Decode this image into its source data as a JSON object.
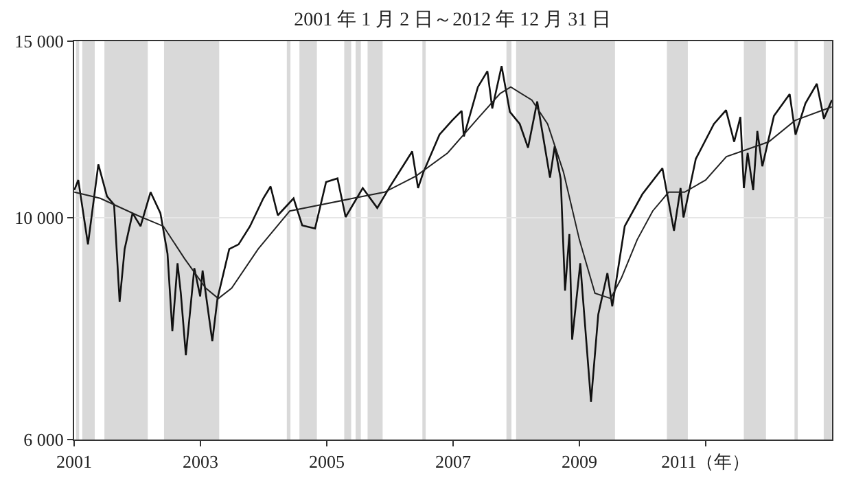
{
  "chart_data": {
    "type": "line",
    "title": "2001 年 1 月 2 日～2012 年 12 月 31 日",
    "xlim": [
      "2001-01-01",
      "2013-01-01"
    ],
    "xticks": [
      {
        "value": "2001-01-01",
        "label": "2001"
      },
      {
        "value": "2003-01-01",
        "label": "2003"
      },
      {
        "value": "2005-01-01",
        "label": "2005"
      },
      {
        "value": "2007-01-01",
        "label": "2007"
      },
      {
        "value": "2009-01-01",
        "label": "2009"
      },
      {
        "value": "2011-01-01",
        "label": "2011（年）"
      }
    ],
    "ylim": [
      6000,
      15000
    ],
    "yticks": [
      {
        "value": 6000,
        "label": "6 000"
      },
      {
        "value": 10000,
        "label": "10 000"
      },
      {
        "value": 15000,
        "label": "15 000"
      }
    ],
    "log": true,
    "grid": "y",
    "marker": "none",
    "line_style": "solid",
    "series": [
      {
        "color": "#111111",
        "x": [
          "2001-01-02",
          "2001-01-25",
          "2001-03-22",
          "2001-05-21",
          "2001-07-10",
          "2001-08-20",
          "2001-09-21",
          "2001-10-20",
          "2001-12-05",
          "2002-01-20",
          "2002-03-19",
          "2002-05-15",
          "2002-06-25",
          "2002-07-23",
          "2002-08-22",
          "2002-09-10",
          "2002-10-09",
          "2002-11-27",
          "2002-12-31",
          "2003-01-14",
          "2003-03-11",
          "2003-04-10",
          "2003-06-17",
          "2003-08-10",
          "2003-10-15",
          "2003-12-31",
          "2004-02-11",
          "2004-03-24",
          "2004-06-23",
          "2004-08-12",
          "2004-10-25",
          "2004-12-28",
          "2005-03-04",
          "2005-04-20",
          "2005-07-28",
          "2005-10-20",
          "2005-12-30",
          "2006-05-10",
          "2006-06-13",
          "2006-07-14",
          "2006-10-15",
          "2006-12-27",
          "2007-02-20",
          "2007-03-05",
          "2007-05-25",
          "2007-07-19",
          "2007-08-16",
          "2007-10-09",
          "2007-11-26",
          "2008-01-22",
          "2008-03-10",
          "2008-05-02",
          "2008-07-15",
          "2008-08-11",
          "2008-09-15",
          "2008-10-10",
          "2008-11-04",
          "2008-11-20",
          "2009-01-06",
          "2009-03-09",
          "2009-04-20",
          "2009-06-12",
          "2009-07-10",
          "2009-09-20",
          "2009-12-31",
          "2010-04-26",
          "2010-07-02",
          "2010-08-09",
          "2010-08-26",
          "2010-11-05",
          "2011-02-18",
          "2011-04-29",
          "2011-06-15",
          "2011-07-21",
          "2011-08-10",
          "2011-09-01",
          "2011-10-03",
          "2011-10-27",
          "2011-11-25",
          "2012-01-31",
          "2012-05-01",
          "2012-06-04",
          "2012-07-31",
          "2012-10-05",
          "2012-11-15",
          "2012-12-31"
        ],
        "values": [
          10650,
          10900,
          9400,
          11300,
          10500,
          10300,
          8235,
          9300,
          10100,
          9800,
          10600,
          10100,
          9200,
          7700,
          9000,
          8400,
          7286,
          8900,
          8340,
          8850,
          7524,
          8300,
          9300,
          9400,
          9800,
          10450,
          10740,
          10050,
          10450,
          9820,
          9750,
          10850,
          10940,
          10010,
          10700,
          10220,
          10720,
          11640,
          10700,
          11100,
          12100,
          12500,
          12780,
          12050,
          13500,
          14000,
          12850,
          14165,
          12750,
          12400,
          11740,
          13060,
          10960,
          11780,
          10920,
          8450,
          9625,
          7550,
          9000,
          6547,
          8000,
          8800,
          8150,
          9800,
          10550,
          11200,
          9700,
          10700,
          10000,
          11440,
          12400,
          12800,
          11900,
          12600,
          10700,
          11600,
          10650,
          12200,
          11250,
          12630,
          13280,
          12100,
          13000,
          13600,
          12550,
          13100
        ]
      },
      {
        "color": "#222222",
        "x": [
          "2001-01-02",
          "2001-06-01",
          "2002-01-01",
          "2002-06-01",
          "2002-10-01",
          "2003-02-01",
          "2003-04-15",
          "2003-07-01",
          "2003-12-01",
          "2004-06-01",
          "2004-12-01",
          "2005-06-01",
          "2005-12-01",
          "2006-06-01",
          "2006-12-01",
          "2007-06-01",
          "2007-10-01",
          "2007-12-01",
          "2008-04-01",
          "2008-07-01",
          "2008-10-01",
          "2009-01-01",
          "2009-04-01",
          "2009-07-01",
          "2009-09-01",
          "2009-12-01",
          "2010-03-01",
          "2010-06-01",
          "2010-09-01",
          "2011-01-01",
          "2011-05-01",
          "2011-09-01",
          "2012-01-01",
          "2012-06-01",
          "2012-12-31"
        ],
        "values": [
          10600,
          10450,
          10050,
          9800,
          9100,
          8500,
          8300,
          8500,
          9300,
          10150,
          10300,
          10450,
          10600,
          11000,
          11600,
          12600,
          13300,
          13500,
          13100,
          12400,
          11100,
          9500,
          8400,
          8300,
          8700,
          9500,
          10150,
          10600,
          10600,
          10900,
          11500,
          11700,
          11900,
          12500,
          12900
        ]
      }
    ],
    "bands": [
      {
        "axis": "x",
        "from": "2001-01-12",
        "to": "2001-01-30",
        "color": "#d9d9d9"
      },
      {
        "axis": "x",
        "from": "2001-02-17",
        "to": "2001-04-30",
        "color": "#d9d9d9"
      },
      {
        "axis": "x",
        "from": "2001-06-25",
        "to": "2002-03-03",
        "color": "#d9d9d9"
      },
      {
        "axis": "x",
        "from": "2002-06-05",
        "to": "2003-04-20",
        "color": "#d9d9d9"
      },
      {
        "axis": "x",
        "from": "2004-05-15",
        "to": "2004-06-05",
        "color": "#d9d9d9"
      },
      {
        "axis": "x",
        "from": "2004-07-27",
        "to": "2004-11-05",
        "color": "#d9d9d9"
      },
      {
        "axis": "x",
        "from": "2005-04-12",
        "to": "2005-05-22",
        "color": "#d9d9d9"
      },
      {
        "axis": "x",
        "from": "2005-06-17",
        "to": "2005-07-17",
        "color": "#d9d9d9"
      },
      {
        "axis": "x",
        "from": "2005-08-25",
        "to": "2005-11-20",
        "color": "#d9d9d9"
      },
      {
        "axis": "x",
        "from": "2006-07-08",
        "to": "2006-07-27",
        "color": "#d9d9d9"
      },
      {
        "axis": "x",
        "from": "2007-11-06",
        "to": "2007-12-05",
        "color": "#d9d9d9"
      },
      {
        "axis": "x",
        "from": "2008-01-01",
        "to": "2009-07-26",
        "color": "#d9d9d9"
      },
      {
        "axis": "x",
        "from": "2010-05-22",
        "to": "2010-09-20",
        "color": "#d9d9d9"
      },
      {
        "axis": "x",
        "from": "2011-08-10",
        "to": "2011-12-16",
        "color": "#d9d9d9"
      },
      {
        "axis": "x",
        "from": "2012-05-29",
        "to": "2012-06-17",
        "color": "#d9d9d9"
      },
      {
        "axis": "x",
        "from": "2012-11-14",
        "to": "2012-12-31",
        "color": "#d9d9d9"
      }
    ]
  }
}
